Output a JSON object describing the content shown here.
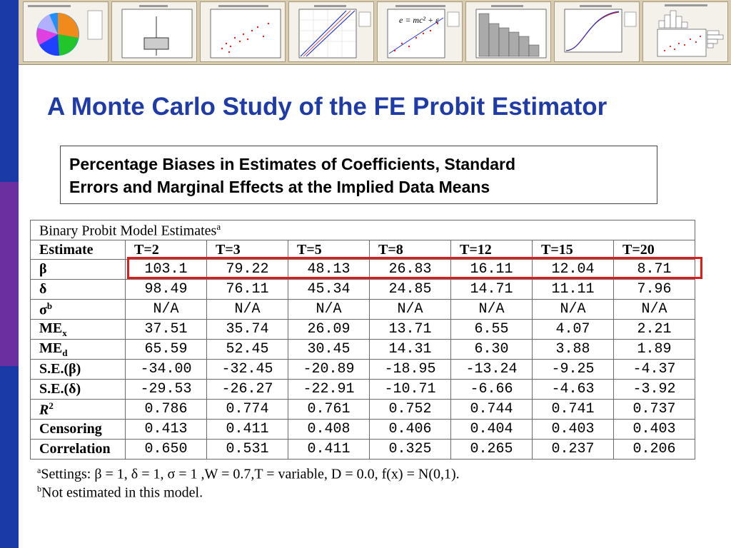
{
  "slide": {
    "title": "A Monte Carlo Study of the FE Probit Estimator",
    "subtitle_line1": "Percentage Biases in Estimates of Coefficients, Standard",
    "subtitle_line2": "Errors and Marginal Effects at the Implied Data Means"
  },
  "colors": {
    "title": "#1f3ba8",
    "highlight": "#e01b1b",
    "leftbar_blue": "#1a3aa8",
    "leftbar_purple": "#6b2fa0"
  },
  "thumbnails": [
    {
      "icon": "pie-chart-thumbnail-icon"
    },
    {
      "icon": "boxplot-thumbnail-icon"
    },
    {
      "icon": "scatterplot-thumbnail-icon"
    },
    {
      "icon": "probability-plot-thumbnail-icon"
    },
    {
      "icon": "regression-scatter-thumbnail-icon",
      "formula": "e = mc² + ε"
    },
    {
      "icon": "histogram-thumbnail-icon"
    },
    {
      "icon": "empirical-cdf-thumbnail-icon"
    },
    {
      "icon": "marginal-plot-thumbnail-icon"
    }
  ],
  "table": {
    "caption": "Binary Probit Model Estimates",
    "caption_sup": "a",
    "header_label": "Estimate",
    "columns": [
      "T=2",
      "T=3",
      "T=5",
      "T=8",
      "T=12",
      "T=15",
      "T=20"
    ],
    "rows": [
      {
        "label": "β",
        "values": [
          "103.1",
          "79.22",
          "48.13",
          "26.83",
          "16.11",
          "12.04",
          "8.71"
        ]
      },
      {
        "label": "δ",
        "values": [
          "98.49",
          "76.11",
          "45.34",
          "24.85",
          "14.71",
          "11.11",
          "7.96"
        ]
      },
      {
        "label": "σ",
        "label_sup": "b",
        "values": [
          "N/A",
          "N/A",
          "N/A",
          "N/A",
          "N/A",
          "N/A",
          "N/A"
        ]
      },
      {
        "label": "ME",
        "label_sub": "x",
        "values": [
          "37.51",
          "35.74",
          "26.09",
          "13.71",
          "6.55",
          "4.07",
          "2.21"
        ]
      },
      {
        "label": "ME",
        "label_sub": "d",
        "values": [
          "65.59",
          "52.45",
          "30.45",
          "14.31",
          "6.30",
          "3.88",
          "1.89"
        ]
      },
      {
        "label": "S.E.(β)",
        "values": [
          "-34.00",
          "-32.45",
          "-20.89",
          "-18.95",
          "-13.24",
          "-9.25",
          "-4.37"
        ]
      },
      {
        "label": "S.E.(δ)",
        "values": [
          "-29.53",
          "-26.27",
          "-22.91",
          "-10.71",
          "-6.66",
          "-4.63",
          "-3.92"
        ]
      },
      {
        "label": "R",
        "label_sup": "2",
        "values": [
          "0.786",
          "0.774",
          "0.761",
          "0.752",
          "0.744",
          "0.741",
          "0.737"
        ]
      },
      {
        "label": "Censoring",
        "values": [
          "0.413",
          "0.411",
          "0.408",
          "0.406",
          "0.404",
          "0.403",
          "0.403"
        ]
      },
      {
        "label": "Correlation",
        "values": [
          "0.650",
          "0.531",
          "0.411",
          "0.325",
          "0.265",
          "0.237",
          "0.206"
        ]
      }
    ]
  },
  "footnotes": {
    "a_mark": "a",
    "a_text": "Settings: β = 1, δ = 1, σ = 1 ,W = 0.7,T = variable, D = 0.0, f(x) = N(0,1).",
    "b_mark": "b",
    "b_text": "Not estimated in this model."
  }
}
